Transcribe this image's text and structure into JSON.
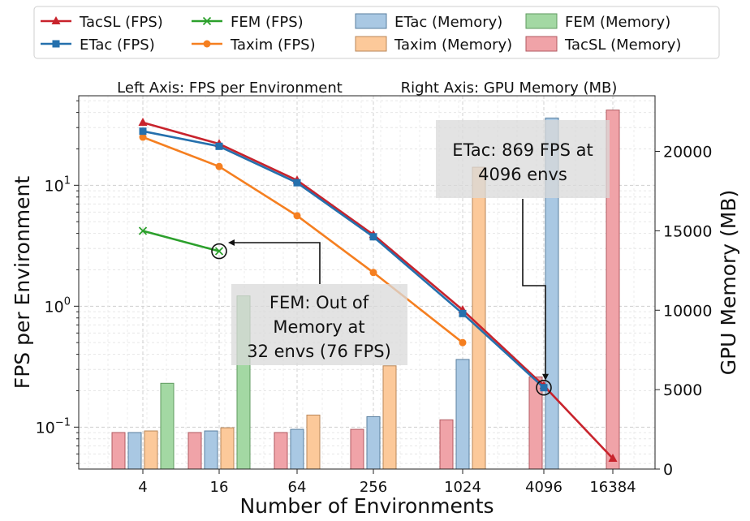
{
  "chart_data": {
    "type": "bar+line",
    "xlabel": "Number of Environments",
    "ylabel_left": "FPS per Environment",
    "ylabel_right": "GPU Memory (MB)",
    "left_axis_note": "Left Axis: FPS per Environment",
    "right_axis_note": "Right Axis: GPU Memory (MB)",
    "categories": [
      "4",
      "16",
      "64",
      "256",
      "1024",
      "4096",
      "16384"
    ],
    "left_scale": "log",
    "left_ylim": [
      0.045,
      55
    ],
    "left_ticks": [
      {
        "value": 0.1,
        "base": "10",
        "exp": "−1"
      },
      {
        "value": 1,
        "base": "10",
        "exp": "0"
      },
      {
        "value": 10,
        "base": "10",
        "exp": "1"
      }
    ],
    "right_ylim": [
      0,
      23500
    ],
    "right_ticks": [
      "0",
      "5000",
      "10000",
      "15000",
      "20000"
    ],
    "right_tick_values": [
      0,
      5000,
      10000,
      15000,
      20000
    ],
    "grid": true,
    "legend_position": "top (above plot)",
    "lines": [
      {
        "name": "TacSL (FPS)",
        "color": "#c8232c",
        "marker": "triangle",
        "x": [
          "4",
          "16",
          "64",
          "256",
          "1024",
          "4096",
          "16384"
        ],
        "values": [
          33,
          22,
          11,
          3.9,
          0.93,
          0.22,
          0.055
        ]
      },
      {
        "name": "ETac (FPS)",
        "color": "#2570ad",
        "marker": "square",
        "x": [
          "4",
          "16",
          "64",
          "256",
          "1024",
          "4096"
        ],
        "values": [
          28,
          21,
          10.5,
          3.75,
          0.87,
          0.212
        ]
      },
      {
        "name": "Taxim (FPS)",
        "color": "#f57f20",
        "marker": "circle",
        "x": [
          "4",
          "16",
          "64",
          "256",
          "1024"
        ],
        "values": [
          25,
          14.3,
          5.6,
          1.9,
          0.5
        ]
      },
      {
        "name": "FEM (FPS)",
        "color": "#2ca02c",
        "marker": "x",
        "x": [
          "4",
          "16"
        ],
        "values": [
          4.2,
          2.85
        ]
      }
    ],
    "bars": [
      {
        "name": "TacSL (Memory)",
        "fill": "#f0a3a8",
        "edge": "#b05a60",
        "values": [
          2300,
          2300,
          2300,
          2500,
          3100,
          5800,
          22600
        ]
      },
      {
        "name": "ETac (Memory)",
        "fill": "#a9c8e3",
        "edge": "#5a7f9f",
        "values": [
          2300,
          2400,
          2500,
          3300,
          6900,
          22100,
          null
        ]
      },
      {
        "name": "Taxim (Memory)",
        "fill": "#fcc99a",
        "edge": "#b88658",
        "values": [
          2400,
          2600,
          3400,
          6500,
          19000,
          null,
          null
        ]
      },
      {
        "name": "FEM (Memory)",
        "fill": "#a3d8a3",
        "edge": "#5f9a5f",
        "values": [
          5400,
          10900,
          null,
          null,
          null,
          null,
          null
        ]
      }
    ],
    "annotations": [
      {
        "lines": [
          "FEM: Out of",
          "Memory at",
          "32 envs (76 FPS)"
        ]
      },
      {
        "lines": [
          "ETac: 869 FPS at",
          "4096 envs"
        ]
      }
    ]
  },
  "legend": {
    "items": [
      {
        "label": "TacSL (FPS)",
        "kind": "line",
        "marker": "triangle",
        "color": "#c8232c"
      },
      {
        "label": "FEM (FPS)",
        "kind": "line",
        "marker": "x",
        "color": "#2ca02c"
      },
      {
        "label": "ETac (Memory)",
        "kind": "patch",
        "color": "#a9c8e3",
        "edge": "#5a7f9f"
      },
      {
        "label": "FEM (Memory)",
        "kind": "patch",
        "color": "#a3d8a3",
        "edge": "#5f9a5f"
      },
      {
        "label": "ETac (FPS)",
        "kind": "line",
        "marker": "square",
        "color": "#2570ad"
      },
      {
        "label": "Taxim (FPS)",
        "kind": "line",
        "marker": "circle",
        "color": "#f57f20"
      },
      {
        "label": "Taxim (Memory)",
        "kind": "patch",
        "color": "#fcc99a",
        "edge": "#b88658"
      },
      {
        "label": "TacSL (Memory)",
        "kind": "patch",
        "color": "#f0a3a8",
        "edge": "#b05a60"
      }
    ]
  }
}
